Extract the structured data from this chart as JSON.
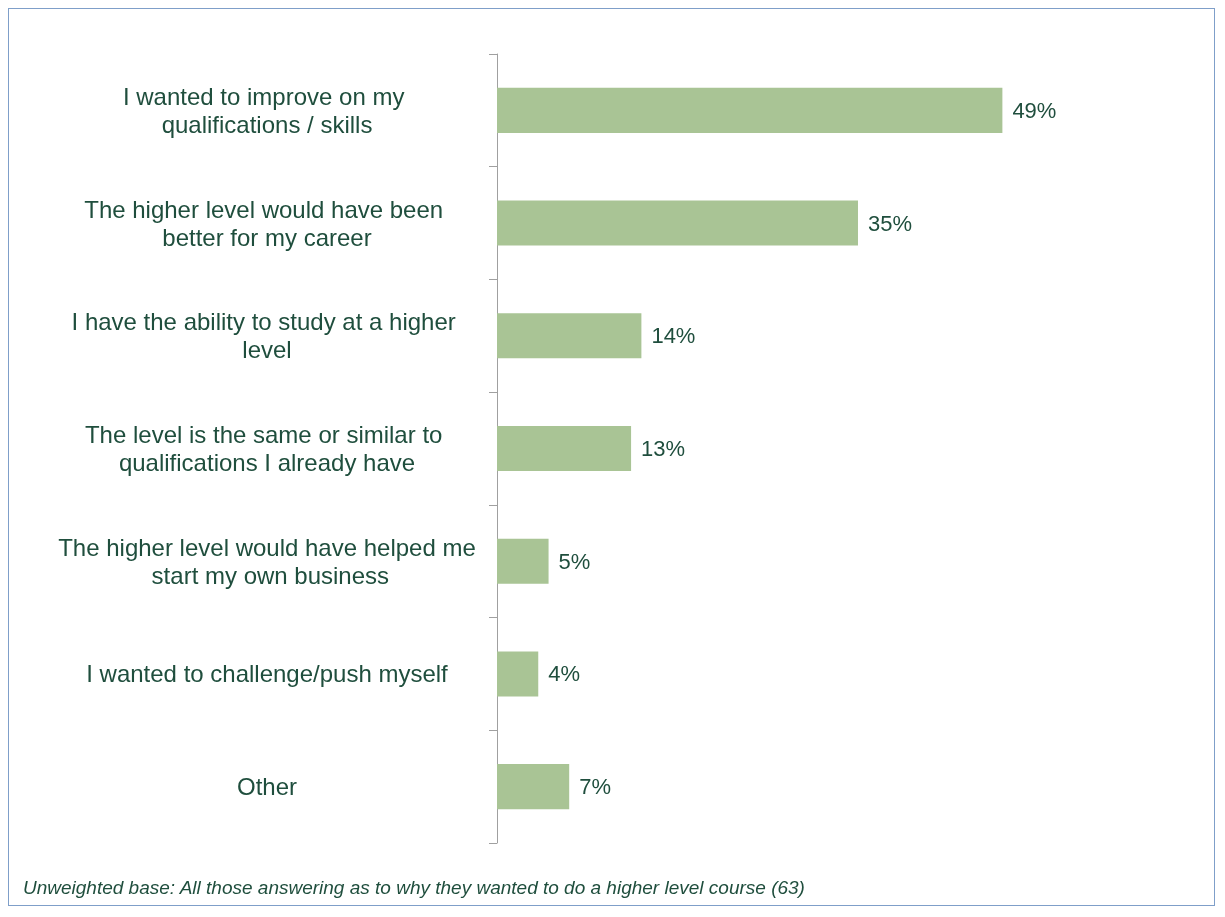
{
  "chart_data": {
    "type": "bar",
    "orientation": "horizontal",
    "categories": [
      "I wanted to improve on my qualifications / skills",
      "The higher level would have been better for my career",
      "I have the ability to study at a higher level",
      "The level is the same or similar to qualifications I already have",
      "The higher level would have helped me start my own business",
      "I wanted to challenge/push myself",
      "Other"
    ],
    "values": [
      49,
      35,
      14,
      13,
      5,
      4,
      7
    ],
    "value_labels": [
      "49%",
      "35%",
      "14%",
      "13%",
      "5%",
      "4%",
      "7%"
    ],
    "color": "#a9c495",
    "tick_labels": "y",
    "annotations": [
      "Unweighted base: All those answering as to why they wanted to do a higher level course (63)"
    ]
  }
}
